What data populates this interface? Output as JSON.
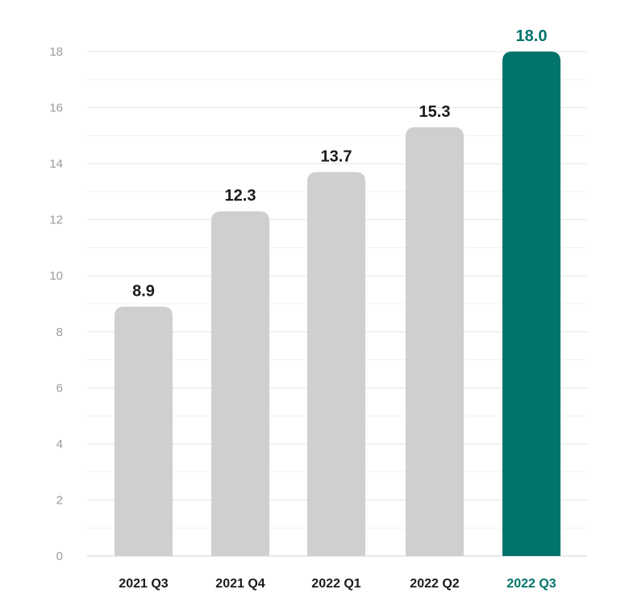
{
  "chart_data": {
    "type": "bar",
    "title": "",
    "xlabel": "",
    "ylabel": "",
    "categories": [
      "2021 Q3",
      "2021 Q4",
      "2022 Q1",
      "2022 Q2",
      "2022 Q3"
    ],
    "values": [
      8.9,
      12.3,
      13.7,
      15.3,
      18.0
    ],
    "value_labels": [
      "8.9",
      "12.3",
      "13.7",
      "15.3",
      "18.0"
    ],
    "highlight_index": 4,
    "ylim": [
      0,
      18
    ],
    "yticks": [
      0,
      2,
      4,
      6,
      8,
      10,
      12,
      14,
      16,
      18
    ],
    "grid": true,
    "legend": "none",
    "colors": {
      "bar": "#cfcfcf",
      "highlight": "#00736b",
      "label": "#1a1a1a",
      "tick": "#9a9a9a",
      "grid_major": "#e3e3e3",
      "grid_minor": "#f1f1f1",
      "axis": "#d0d0d0"
    }
  }
}
